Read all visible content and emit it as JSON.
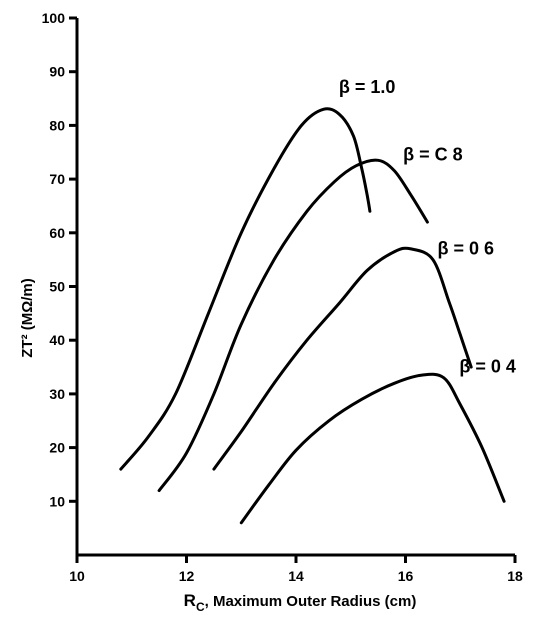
{
  "chart_data": {
    "type": "line",
    "xlabel_symbol": "R",
    "xlabel_sub": "C",
    "xlabel_rest": ", Maximum Outer Radius (cm)",
    "ylabel": "ZT² (MΩ/m)",
    "xlim": [
      10,
      18
    ],
    "ylim": [
      0,
      100
    ],
    "x_ticks": [
      10,
      12,
      14,
      16,
      18
    ],
    "y_ticks": [
      10,
      20,
      30,
      40,
      50,
      60,
      70,
      80,
      90,
      100
    ],
    "x_tick_labels": [
      "10",
      "12",
      "14",
      "16",
      "18"
    ],
    "y_tick_labels": [
      "10",
      "20",
      "30",
      "40",
      "50",
      "60",
      "70",
      "80",
      "90",
      "100"
    ],
    "grid": false,
    "series": [
      {
        "name": "β = 1.0",
        "x": [
          10.8,
          11.3,
          11.8,
          12.4,
          13.0,
          13.6,
          14.1,
          14.5,
          14.8,
          15.05,
          15.2,
          15.3,
          15.35
        ],
        "y": [
          16,
          22,
          30,
          45,
          60,
          72,
          80,
          83,
          82,
          78,
          72,
          67,
          64
        ]
      },
      {
        "name": "β = 0.8",
        "x": [
          11.5,
          12.0,
          12.5,
          13.0,
          13.6,
          14.2,
          14.7,
          15.1,
          15.5,
          15.8,
          16.1,
          16.4
        ],
        "y": [
          12,
          19,
          30,
          43,
          55,
          64,
          69.5,
          72.5,
          73.5,
          71.5,
          67,
          62
        ]
      },
      {
        "name": "β = 0.6",
        "x": [
          12.5,
          13.0,
          13.6,
          14.2,
          14.8,
          15.3,
          15.8,
          16.1,
          16.5,
          16.8,
          17.0,
          17.2
        ],
        "y": [
          16,
          23,
          32,
          40,
          47,
          53,
          56.5,
          57,
          55,
          47,
          41,
          35
        ]
      },
      {
        "name": "β = 0.4",
        "x": [
          13.0,
          13.5,
          14.0,
          14.6,
          15.2,
          15.8,
          16.3,
          16.7,
          17.0,
          17.4,
          17.8
        ],
        "y": [
          6,
          13,
          19.5,
          25,
          29,
          32,
          33.5,
          33,
          28,
          20,
          10
        ]
      }
    ],
    "curve_labels": [
      {
        "text": "β = 1.0",
        "x": 15.3,
        "y": 86
      },
      {
        "text": "β = C 8",
        "x": 16.5,
        "y": 73.5
      },
      {
        "text": "β = 0 6",
        "x": 17.1,
        "y": 56
      },
      {
        "text": "β = 0 4",
        "x": 17.5,
        "y": 34
      }
    ]
  }
}
